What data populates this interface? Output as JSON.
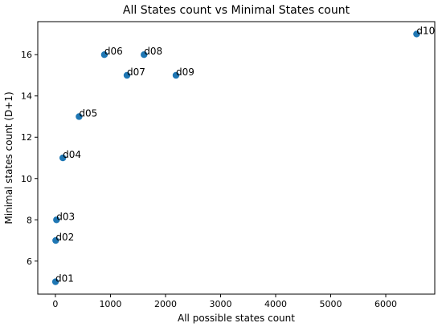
{
  "chart_data": {
    "type": "scatter",
    "title": "All States count vs Minimal States count",
    "xlabel": "All possible states count",
    "ylabel": "Minimal states count (D+1)",
    "xlim": [
      -320,
      6890
    ],
    "ylim": [
      4.4,
      17.6
    ],
    "xticks": [
      0,
      1000,
      2000,
      3000,
      4000,
      5000,
      6000
    ],
    "yticks": [
      6,
      8,
      10,
      12,
      14,
      16
    ],
    "grid": false,
    "marker_color": "#1f77b4",
    "points": [
      {
        "label": "d01",
        "x": 2,
        "y": 5
      },
      {
        "label": "d02",
        "x": 6,
        "y": 7
      },
      {
        "label": "d03",
        "x": 20,
        "y": 8
      },
      {
        "label": "d04",
        "x": 135,
        "y": 11
      },
      {
        "label": "d05",
        "x": 430,
        "y": 13
      },
      {
        "label": "d06",
        "x": 890,
        "y": 16
      },
      {
        "label": "d07",
        "x": 1300,
        "y": 15
      },
      {
        "label": "d08",
        "x": 1610,
        "y": 16
      },
      {
        "label": "d09",
        "x": 2190,
        "y": 15
      },
      {
        "label": "d10",
        "x": 6560,
        "y": 17
      }
    ]
  }
}
